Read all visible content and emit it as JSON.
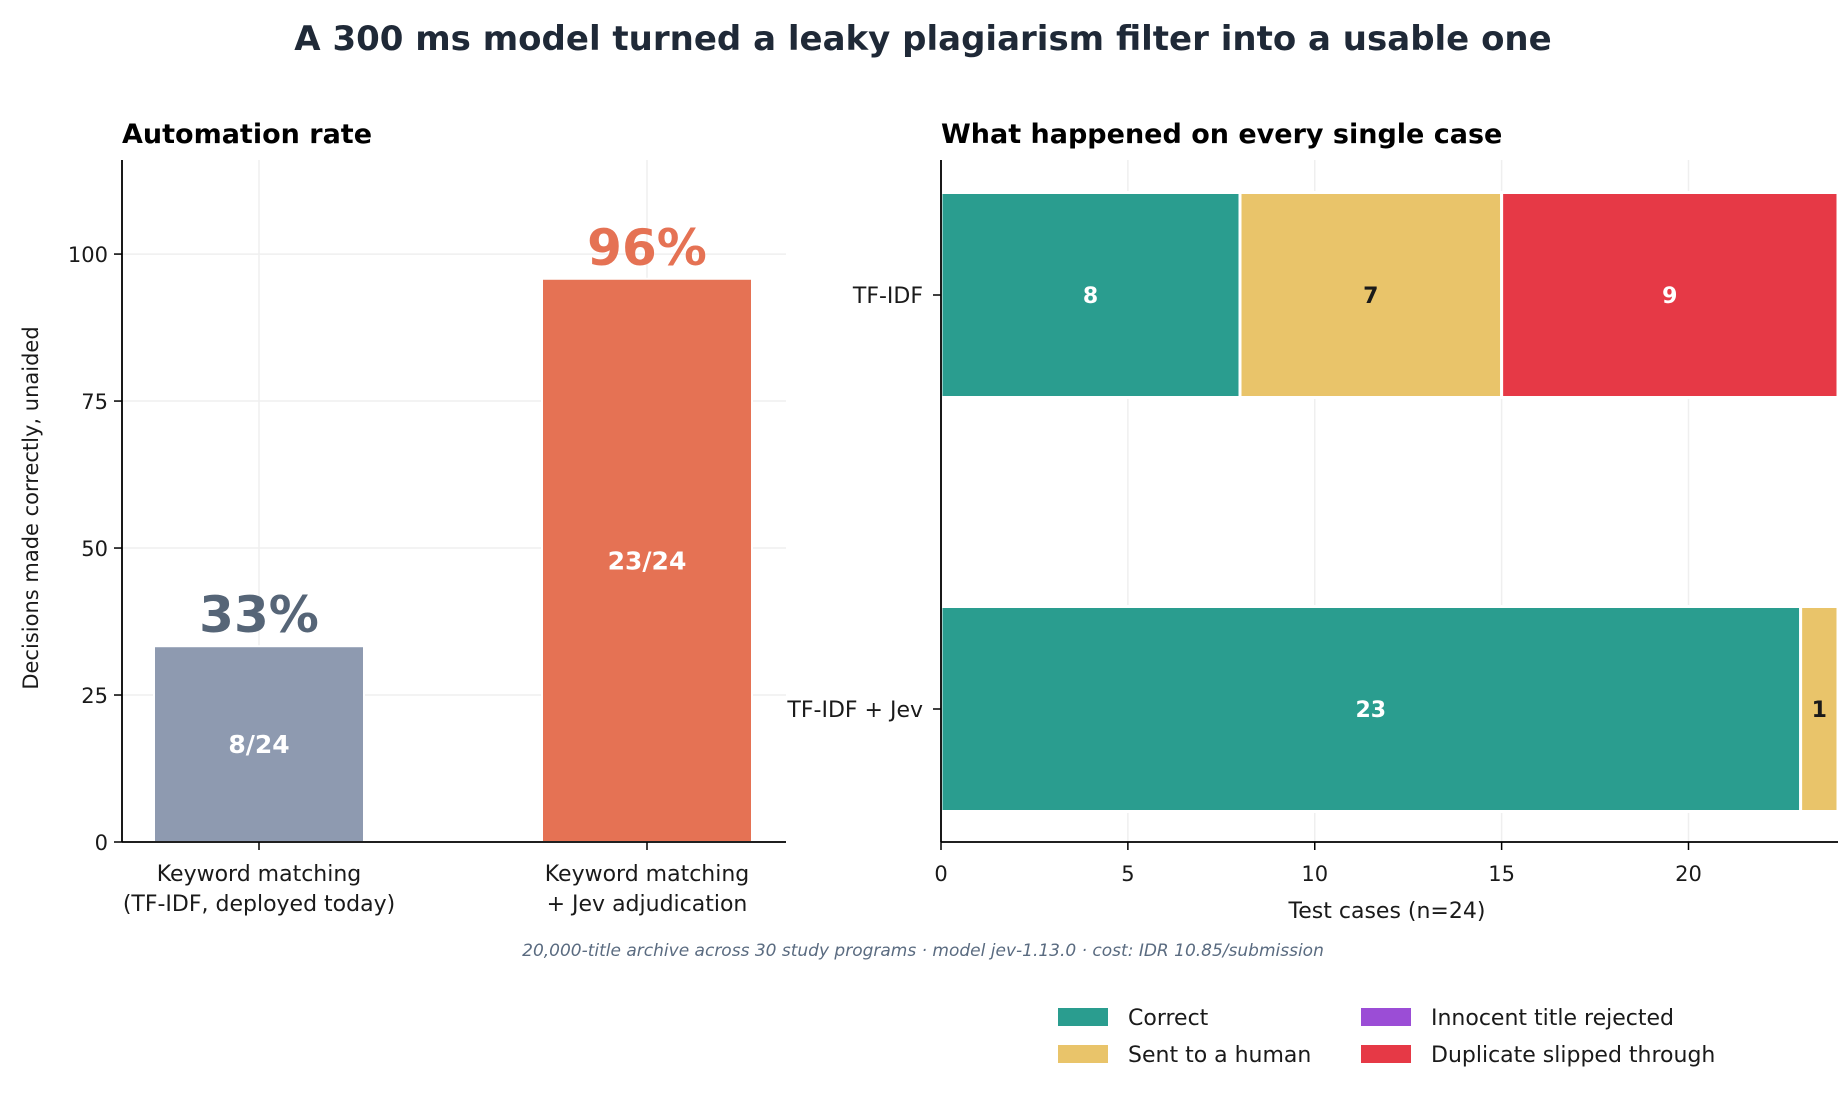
{
  "title": "A 300 ms model turned a leaky plagiarism filter into a usable one",
  "footnote": "20,000-title archive across 30 study programs  ·  model jev-1.13.0  ·  cost: IDR 10.85/submission",
  "colors": {
    "tfidf_bar": "#8e9ab0",
    "jev_bar": "#e57254",
    "correct": "#2a9d8f",
    "human": "#e9c46a",
    "innocent": "#9b4dd6",
    "duplicate": "#e63946",
    "big_label_dark": "#566577",
    "text": "#1a1a1a"
  },
  "chart_data": [
    {
      "type": "bar",
      "title": "Automation rate",
      "ylabel": "Decisions made correctly, unaided",
      "xlabel": "",
      "ylim": [
        0,
        116
      ],
      "yticks": [
        0,
        25,
        50,
        75,
        100
      ],
      "grid": true,
      "categories": [
        [
          "Keyword matching",
          "(TF-IDF, deployed today)"
        ],
        [
          "Keyword matching",
          "+ Jev adjudication"
        ]
      ],
      "values": [
        33.3,
        95.8
      ],
      "value_labels": [
        "33%",
        "96%"
      ],
      "inner_labels": [
        "8/24",
        "23/24"
      ]
    },
    {
      "type": "bar",
      "orientation": "horizontal",
      "stacked": true,
      "title": "What happened on every single case",
      "xlabel": "Test cases (n=24)",
      "xlim": [
        0,
        24
      ],
      "xticks": [
        0,
        5,
        10,
        15,
        20
      ],
      "grid": true,
      "categories": [
        "TF-IDF",
        "TF-IDF + Jev"
      ],
      "series": [
        {
          "name": "Correct",
          "color_key": "correct",
          "values": [
            8,
            23
          ]
        },
        {
          "name": "Sent to a human",
          "color_key": "human",
          "values": [
            7,
            1
          ]
        },
        {
          "name": "Innocent title rejected",
          "color_key": "innocent",
          "values": [
            0,
            0
          ]
        },
        {
          "name": "Duplicate slipped through",
          "color_key": "duplicate",
          "values": [
            9,
            0
          ]
        }
      ],
      "legend_position": "bottom-right"
    }
  ]
}
